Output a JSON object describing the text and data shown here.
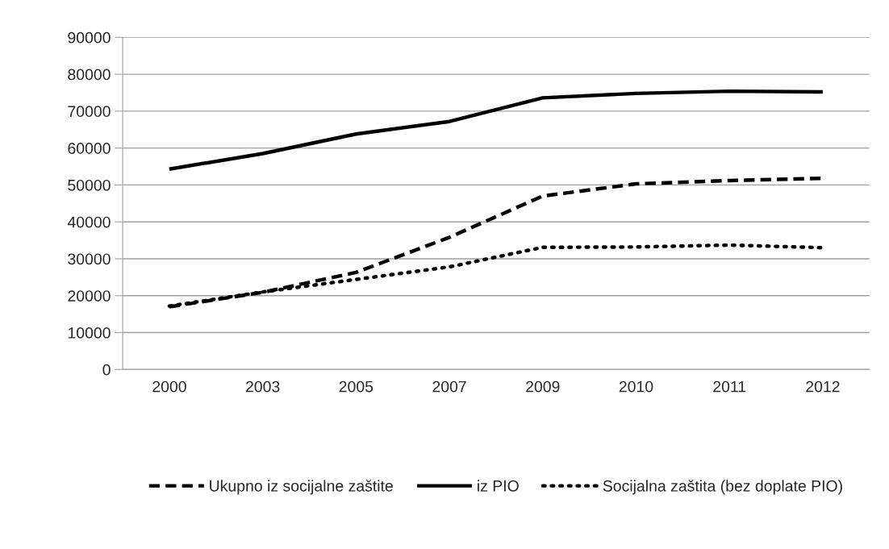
{
  "chart_data": {
    "type": "line",
    "categories": [
      "2000",
      "2003",
      "2005",
      "2007",
      "2009",
      "2010",
      "2011",
      "2012"
    ],
    "series": [
      {
        "name": "Ukupno iz socijalne zaštite",
        "color": "#000000",
        "line_style": "dashed",
        "values": [
          17000,
          20900,
          26300,
          35800,
          47000,
          50300,
          51200,
          51800
        ]
      },
      {
        "name": "iz PIO",
        "color": "#000000",
        "line_style": "solid",
        "values": [
          54300,
          58500,
          63800,
          67200,
          73600,
          74800,
          75400,
          75200
        ]
      },
      {
        "name": "Socijalna zaštita (bez doplate PIO)",
        "color": "#000000",
        "line_style": "dotted",
        "values": [
          17200,
          21000,
          24400,
          27800,
          33100,
          33200,
          33700,
          33000
        ]
      }
    ],
    "ylim": [
      0,
      90000
    ],
    "yticks": [
      0,
      10000,
      20000,
      30000,
      40000,
      50000,
      60000,
      70000,
      80000,
      90000
    ],
    "grid": "y",
    "legend": "bottom",
    "marker": "none"
  }
}
